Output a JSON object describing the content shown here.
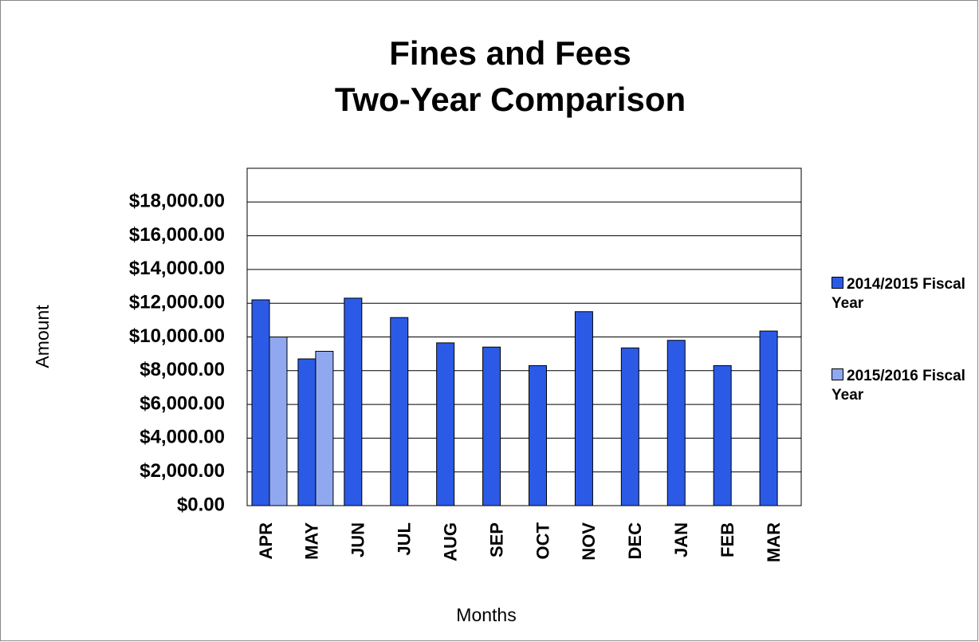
{
  "chart_data": {
    "type": "bar",
    "title": [
      "Fines and Fees",
      "Two-Year Comparison"
    ],
    "x_label": "Months",
    "y_label": "Amount",
    "categories": [
      "APR",
      "MAY",
      "JUN",
      "JUL",
      "AUG",
      "SEP",
      "OCT",
      "NOV",
      "DEC",
      "JAN",
      "FEB",
      "MAR"
    ],
    "series": [
      {
        "name": "2014/2015 Fiscal Year",
        "color": "#2b5be6",
        "values": [
          12200,
          8700,
          12300,
          11150,
          9650,
          9400,
          8300,
          11500,
          9350,
          9800,
          8300,
          10350
        ]
      },
      {
        "name": "2015/2016 Fiscal Year",
        "color": "#8fa8f0",
        "values": [
          10000,
          9150,
          null,
          null,
          null,
          null,
          null,
          null,
          null,
          null,
          null,
          null
        ]
      }
    ],
    "ylim": [
      0,
      20000
    ],
    "yticks": [
      {
        "value": 0,
        "label": "$0.00"
      },
      {
        "value": 2000,
        "label": "$2,000.00"
      },
      {
        "value": 4000,
        "label": "$4,000.00"
      },
      {
        "value": 6000,
        "label": "$6,000.00"
      },
      {
        "value": 8000,
        "label": "$8,000.00"
      },
      {
        "value": 10000,
        "label": "$10,000.00"
      },
      {
        "value": 12000,
        "label": "$12,000.00"
      },
      {
        "value": 14000,
        "label": "$14,000.00"
      },
      {
        "value": 16000,
        "label": "$16,000.00"
      },
      {
        "value": 18000,
        "label": "$18,000.00"
      }
    ],
    "grid": true,
    "legend": "right"
  }
}
